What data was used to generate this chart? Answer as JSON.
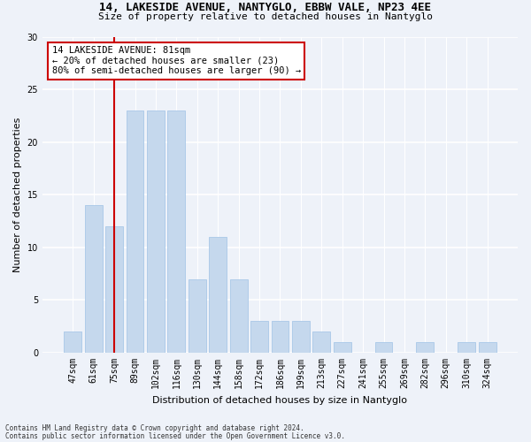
{
  "title_line1": "14, LAKESIDE AVENUE, NANTYGLO, EBBW VALE, NP23 4EE",
  "title_line2": "Size of property relative to detached houses in Nantyglo",
  "xlabel": "Distribution of detached houses by size in Nantyglo",
  "ylabel": "Number of detached properties",
  "categories": [
    "47sqm",
    "61sqm",
    "75sqm",
    "89sqm",
    "102sqm",
    "116sqm",
    "130sqm",
    "144sqm",
    "158sqm",
    "172sqm",
    "186sqm",
    "199sqm",
    "213sqm",
    "227sqm",
    "241sqm",
    "255sqm",
    "269sqm",
    "282sqm",
    "296sqm",
    "310sqm",
    "324sqm"
  ],
  "values": [
    2,
    14,
    12,
    23,
    23,
    23,
    7,
    11,
    7,
    3,
    3,
    3,
    2,
    1,
    0,
    1,
    0,
    1,
    0,
    1,
    1
  ],
  "bar_color": "#c5d8ed",
  "bar_edge_color": "#a8c8e8",
  "vline_x": 2.0,
  "vline_color": "#cc0000",
  "annotation_text": "14 LAKESIDE AVENUE: 81sqm\n← 20% of detached houses are smaller (23)\n80% of semi-detached houses are larger (90) →",
  "annotation_box_color": "#ffffff",
  "annotation_box_edge_color": "#cc0000",
  "ylim": [
    0,
    30
  ],
  "yticks": [
    0,
    5,
    10,
    15,
    20,
    25,
    30
  ],
  "footnote_line1": "Contains HM Land Registry data © Crown copyright and database right 2024.",
  "footnote_line2": "Contains public sector information licensed under the Open Government Licence v3.0.",
  "bg_color": "#eef2f9",
  "plot_bg_color": "#eef2f9",
  "title_fontsize": 9,
  "subtitle_fontsize": 8,
  "ylabel_fontsize": 8,
  "xlabel_fontsize": 8,
  "tick_fontsize": 7,
  "annot_fontsize": 7.5
}
